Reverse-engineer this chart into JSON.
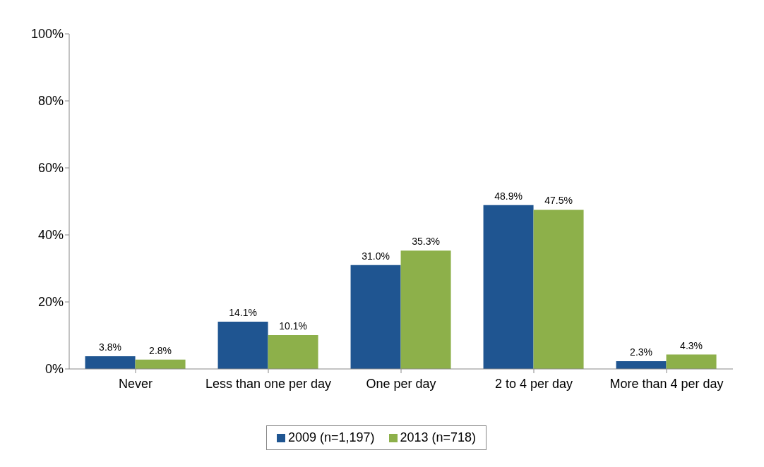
{
  "chart_data": {
    "type": "bar",
    "categories": [
      "Never",
      "Less than one per day",
      "One per day",
      "2 to 4 per day",
      "More than 4 per day"
    ],
    "series": [
      {
        "name": "2009 (n=1,197)",
        "color": "#1f5591",
        "values": [
          3.8,
          14.1,
          31.0,
          48.9,
          2.3
        ],
        "value_labels": [
          "3.8%",
          "14.1%",
          "31.0%",
          "48.9%",
          "2.3%"
        ]
      },
      {
        "name": "2013 (n=718)",
        "color": "#8db04a",
        "values": [
          2.8,
          10.1,
          35.3,
          47.5,
          4.3
        ],
        "value_labels": [
          "2.8%",
          "10.1%",
          "35.3%",
          "47.5%",
          "4.3%"
        ]
      }
    ],
    "ylim": [
      0,
      100
    ],
    "yticks": [
      {
        "value": 0,
        "label": "0%"
      },
      {
        "value": 20,
        "label": "20%"
      },
      {
        "value": 40,
        "label": "40%"
      },
      {
        "value": 60,
        "label": "60%"
      },
      {
        "value": 80,
        "label": "80%"
      },
      {
        "value": 100,
        "label": "100%"
      }
    ],
    "grid": false,
    "legend": "bottom"
  }
}
